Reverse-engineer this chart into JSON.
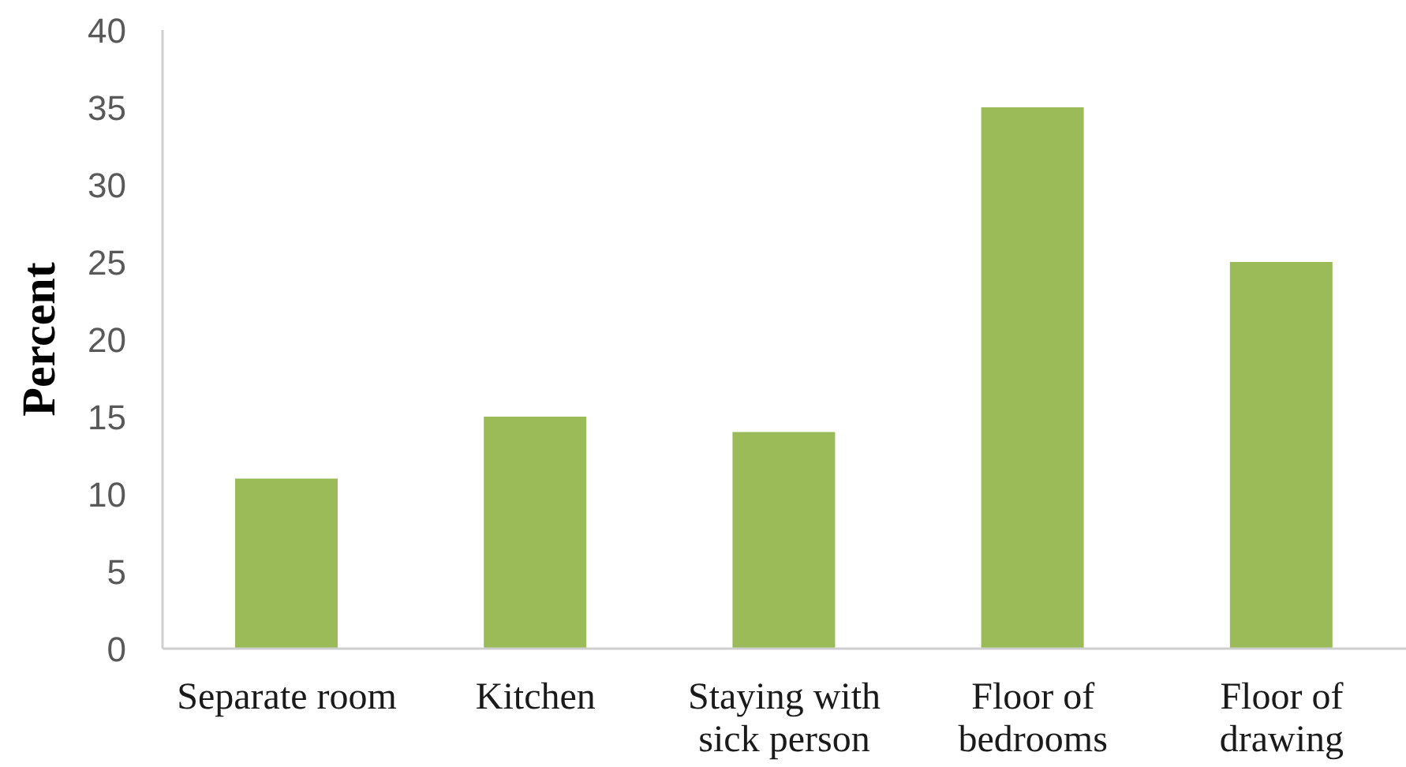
{
  "chart_data": {
    "type": "bar",
    "ylabel": "Percent",
    "categories": [
      "Separate room",
      "Kitchen",
      "Staying with sick person",
      "Floor of bedrooms",
      "Floor of drawing"
    ],
    "values": [
      11,
      15,
      14,
      35,
      25
    ],
    "color": "#9bbb59",
    "ylim": [
      0,
      40
    ],
    "yticks": [
      0,
      5,
      10,
      15,
      20,
      25,
      30,
      35,
      40
    ]
  }
}
